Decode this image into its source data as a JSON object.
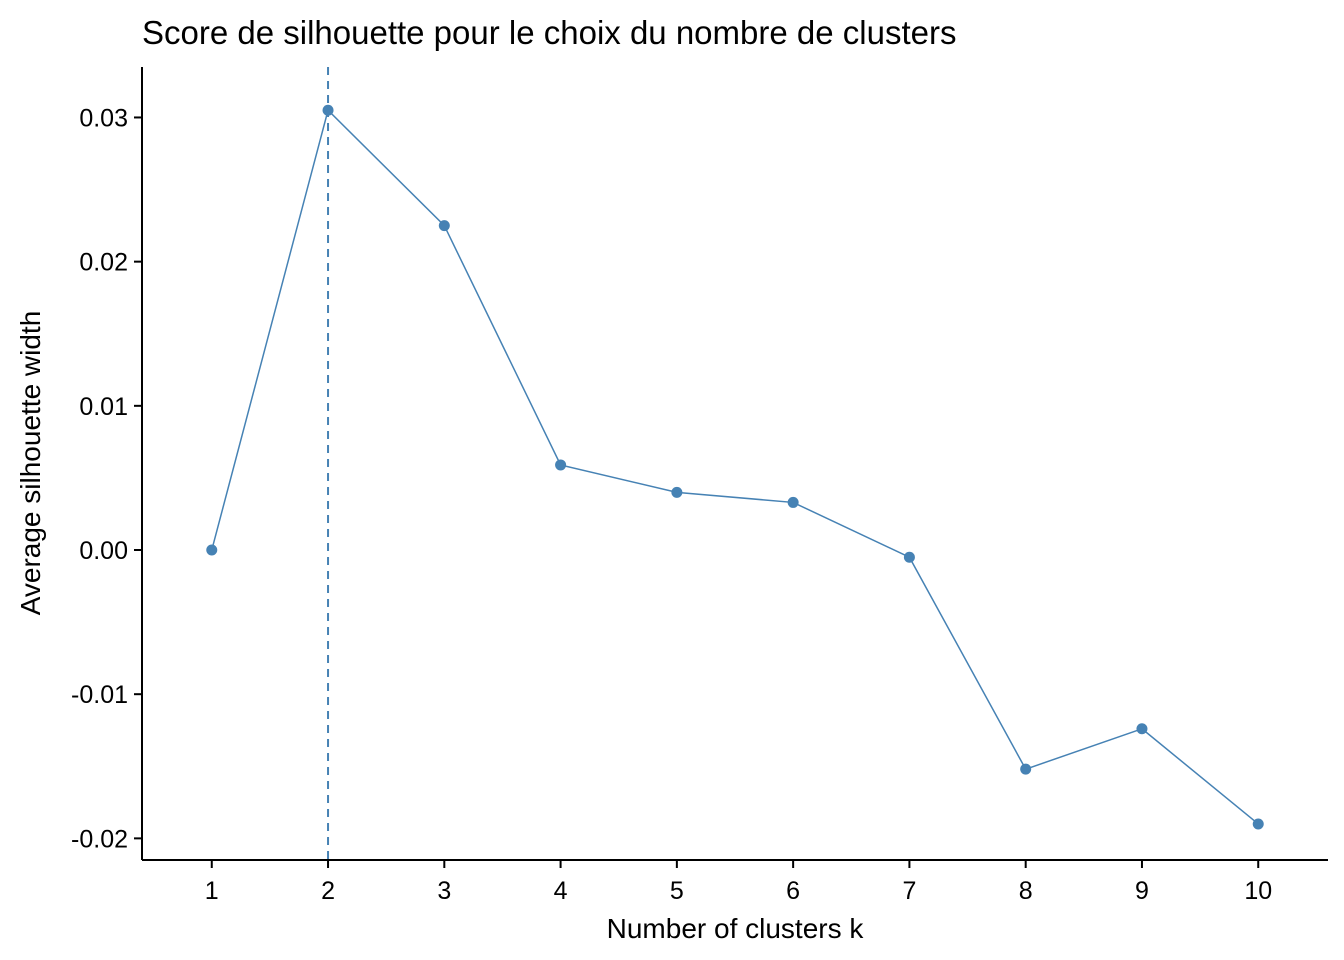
{
  "chart_data": {
    "type": "line",
    "title": "Score de silhouette pour le choix du nombre de clusters",
    "xlabel": "Number of clusters k",
    "ylabel": "Average silhouette width",
    "x": [
      1,
      2,
      3,
      4,
      5,
      6,
      7,
      8,
      9,
      10
    ],
    "x_tick_labels": [
      "1",
      "2",
      "3",
      "4",
      "5",
      "6",
      "7",
      "8",
      "9",
      "10"
    ],
    "series": [
      {
        "values": [
          0.0,
          0.0305,
          0.0225,
          0.0059,
          0.004,
          0.0033,
          -0.0005,
          -0.0152,
          -0.0124,
          -0.019
        ]
      }
    ],
    "yticks": [
      -0.02,
      -0.01,
      0.0,
      0.01,
      0.02,
      0.03
    ],
    "y_tick_labels": [
      "-0.02",
      "-0.01",
      "0.00",
      "0.01",
      "0.02",
      "0.03"
    ],
    "ylim": [
      -0.0215,
      0.0335
    ],
    "xlim": [
      0.4,
      10.6
    ],
    "vline_x": 2,
    "grid": false,
    "legend": "none",
    "colors": {
      "series": "#4682B4",
      "axis": "#000000"
    }
  }
}
